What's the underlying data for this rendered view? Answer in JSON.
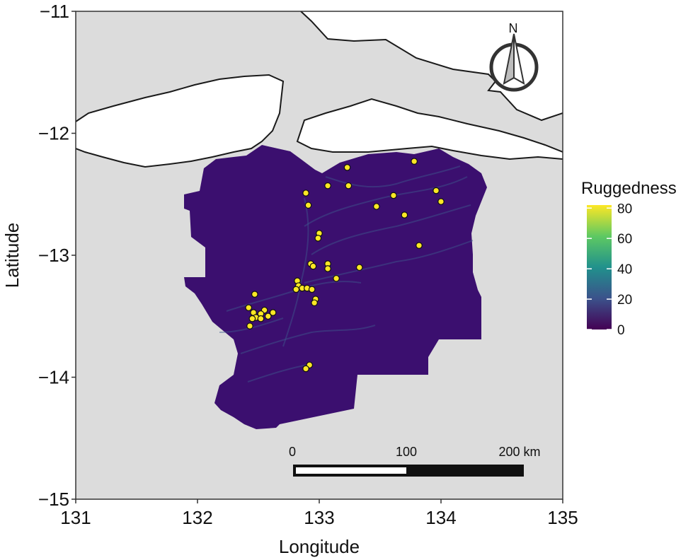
{
  "map": {
    "x_axis": {
      "title": "Longitude",
      "ticks": [
        {
          "value": 131,
          "label": "131"
        },
        {
          "value": 132,
          "label": "132"
        },
        {
          "value": 133,
          "label": "133"
        },
        {
          "value": 134,
          "label": "134"
        },
        {
          "value": 135,
          "label": "135"
        }
      ],
      "range": [
        131,
        135
      ]
    },
    "y_axis": {
      "title": "Latitude",
      "ticks": [
        {
          "value": -11,
          "label": "−11"
        },
        {
          "value": -12,
          "label": "−12"
        },
        {
          "value": -13,
          "label": "−13"
        },
        {
          "value": -14,
          "label": "−14"
        },
        {
          "value": -15,
          "label": "−15"
        }
      ],
      "range": [
        -15,
        -11
      ]
    },
    "legend": {
      "title": "Ruggedness",
      "placement": "right",
      "labels": [
        {
          "value": 80,
          "label": "80"
        },
        {
          "value": 60,
          "label": "60"
        },
        {
          "value": 40,
          "label": "40"
        },
        {
          "value": 20,
          "label": "20"
        },
        {
          "value": 0,
          "label": "0"
        }
      ],
      "range": [
        0,
        82
      ],
      "gradient_colors": [
        "#440154",
        "#3b528b",
        "#21918c",
        "#5ec962",
        "#fde725"
      ]
    },
    "scale_bar": {
      "labels": [
        {
          "value": 0,
          "label": "0"
        },
        {
          "value": 100,
          "label": "100"
        },
        {
          "value": 200,
          "label": "200 km"
        }
      ]
    },
    "north_arrow": {
      "label": "N"
    },
    "colors": {
      "land": "#dcdcdc",
      "sea": "#ffffff",
      "region": "#3b0f6f",
      "site_fill": "#fde725",
      "coastline": "#1a1a1a"
    },
    "sites": [
      [
        133.23,
        -12.28
      ],
      [
        133.07,
        -12.43
      ],
      [
        133.24,
        -12.43
      ],
      [
        132.89,
        -12.49
      ],
      [
        132.91,
        -12.59
      ],
      [
        133.47,
        -12.6
      ],
      [
        133.61,
        -12.51
      ],
      [
        133.7,
        -12.67
      ],
      [
        133.96,
        -12.47
      ],
      [
        134.0,
        -12.56
      ],
      [
        133.78,
        -12.23
      ],
      [
        133.82,
        -12.92
      ],
      [
        133.0,
        -12.82
      ],
      [
        132.99,
        -12.86
      ],
      [
        132.93,
        -13.07
      ],
      [
        132.95,
        -13.09
      ],
      [
        133.07,
        -13.07
      ],
      [
        133.07,
        -13.11
      ],
      [
        133.33,
        -13.1
      ],
      [
        133.14,
        -13.19
      ],
      [
        132.82,
        -13.21
      ],
      [
        132.83,
        -13.25
      ],
      [
        132.81,
        -13.28
      ],
      [
        132.86,
        -13.27
      ],
      [
        132.9,
        -13.27
      ],
      [
        132.94,
        -13.28
      ],
      [
        132.97,
        -13.36
      ],
      [
        132.96,
        -13.39
      ],
      [
        132.42,
        -13.43
      ],
      [
        132.46,
        -13.47
      ],
      [
        132.47,
        -13.32
      ],
      [
        132.55,
        -13.45
      ],
      [
        132.52,
        -13.48
      ],
      [
        132.48,
        -13.51
      ],
      [
        132.45,
        -13.52
      ],
      [
        132.58,
        -13.5
      ],
      [
        132.62,
        -13.47
      ],
      [
        132.52,
        -13.52
      ],
      [
        132.43,
        -13.58
      ],
      [
        132.92,
        -13.9
      ],
      [
        132.89,
        -13.93
      ]
    ]
  }
}
